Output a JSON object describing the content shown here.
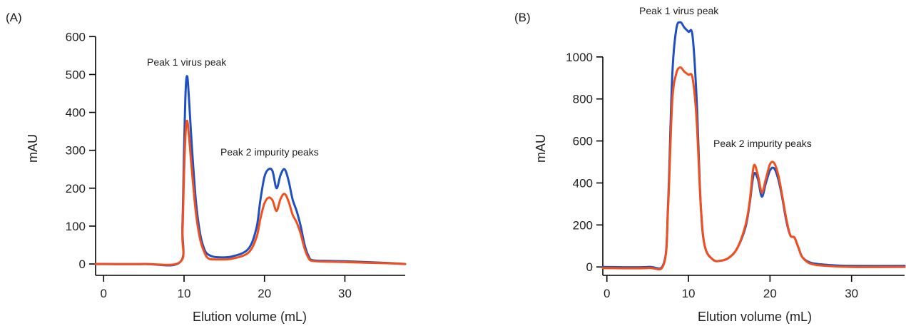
{
  "chart_data": [
    {
      "type": "line",
      "panel_label": "(A)",
      "xlabel": "Elution volume (mL)",
      "ylabel": "mAU",
      "xlim": [
        -1,
        37.5
      ],
      "ylim": [
        -30,
        610
      ],
      "xticks": [
        0,
        10,
        20,
        30
      ],
      "yticks": [
        0,
        100,
        200,
        300,
        400,
        500,
        600
      ],
      "grid": false,
      "annotations": [
        {
          "text": "Peak 1 virus peak",
          "x": 11,
          "y": 525
        },
        {
          "text": "Peak 2 impurity peaks",
          "x": 20,
          "y": 285
        }
      ],
      "series": [
        {
          "color": "#1f4fc0",
          "x": [
            -1,
            5,
            9.5,
            9.8,
            10.0,
            10.2,
            10.4,
            10.6,
            11.0,
            11.5,
            12.0,
            12.5,
            13.0,
            14.0,
            16.0,
            18.0,
            19.0,
            19.5,
            20.0,
            20.5,
            21.0,
            21.5,
            22.0,
            22.5,
            23.0,
            23.5,
            24.0,
            24.5,
            25.0,
            25.5,
            26.0,
            28.0,
            30.0,
            35.0,
            37.5
          ],
          "y": [
            0,
            0,
            5,
            100,
            300,
            460,
            495,
            440,
            300,
            160,
            80,
            40,
            25,
            18,
            20,
            40,
            95,
            170,
            230,
            250,
            245,
            200,
            235,
            250,
            220,
            170,
            140,
            100,
            50,
            20,
            10,
            8,
            7,
            3,
            0
          ]
        },
        {
          "color": "#f0501e",
          "x": [
            -1,
            5,
            9.5,
            9.8,
            10.0,
            10.2,
            10.4,
            10.6,
            11.0,
            11.5,
            12.0,
            12.5,
            13.0,
            14.0,
            16.0,
            18.0,
            19.0,
            19.5,
            20.0,
            20.5,
            21.0,
            21.5,
            22.0,
            22.5,
            23.0,
            23.5,
            24.0,
            24.5,
            25.0,
            25.5,
            26.0,
            28.0,
            30.0,
            35.0,
            37.5
          ],
          "y": [
            0,
            0,
            5,
            80,
            240,
            350,
            378,
            340,
            240,
            130,
            65,
            32,
            15,
            12,
            14,
            30,
            70,
            120,
            160,
            175,
            168,
            140,
            172,
            185,
            165,
            130,
            110,
            80,
            40,
            15,
            8,
            6,
            5,
            2,
            0
          ]
        }
      ]
    },
    {
      "type": "line",
      "panel_label": "(B)",
      "xlabel": "Elution volume (mL)",
      "ylabel": "mAU",
      "xlim": [
        -0.5,
        36.5
      ],
      "ylim": [
        -40,
        1210
      ],
      "xticks": [
        0,
        10,
        20,
        30
      ],
      "yticks": [
        0,
        200,
        400,
        600,
        800,
        1000
      ],
      "grid": false,
      "annotations": [
        {
          "text": "Peak 1 virus peak",
          "x": 10,
          "y": 1210
        },
        {
          "text": "Peak 2 impurity peaks",
          "x": 20,
          "y": 580
        }
      ],
      "series": [
        {
          "color": "#1f4fc0",
          "x": [
            -0.5,
            5,
            7.0,
            7.5,
            8.0,
            8.5,
            9.0,
            9.5,
            10.0,
            10.5,
            11.0,
            11.5,
            12.0,
            13.0,
            14.0,
            15.0,
            16.0,
            17.0,
            17.5,
            18.0,
            18.5,
            19.0,
            19.5,
            20.0,
            20.5,
            21.0,
            21.5,
            22.0,
            22.5,
            23.0,
            23.5,
            24.0,
            25.0,
            27.0,
            30.0,
            36.5
          ],
          "y": [
            0,
            0,
            20,
            300,
            900,
            1130,
            1165,
            1140,
            1120,
            1100,
            800,
            300,
            100,
            35,
            30,
            45,
            90,
            190,
            300,
            440,
            420,
            335,
            400,
            460,
            470,
            420,
            330,
            220,
            150,
            140,
            90,
            45,
            20,
            10,
            5,
            5
          ]
        },
        {
          "color": "#f0501e",
          "x": [
            -0.5,
            5,
            7.0,
            7.5,
            8.0,
            8.5,
            9.0,
            9.5,
            10.0,
            10.5,
            11.0,
            11.5,
            12.0,
            13.0,
            14.0,
            15.0,
            16.0,
            17.0,
            17.5,
            18.0,
            18.5,
            19.0,
            19.5,
            20.0,
            20.5,
            21.0,
            21.5,
            22.0,
            22.5,
            23.0,
            23.5,
            24.0,
            25.0,
            27.0,
            30.0,
            36.5
          ],
          "y": [
            -5,
            -5,
            15,
            280,
            780,
            920,
            950,
            930,
            915,
            900,
            700,
            300,
            100,
            35,
            30,
            45,
            90,
            200,
            310,
            480,
            440,
            355,
            420,
            490,
            495,
            440,
            340,
            230,
            150,
            140,
            90,
            45,
            15,
            5,
            0,
            0
          ]
        }
      ]
    }
  ]
}
